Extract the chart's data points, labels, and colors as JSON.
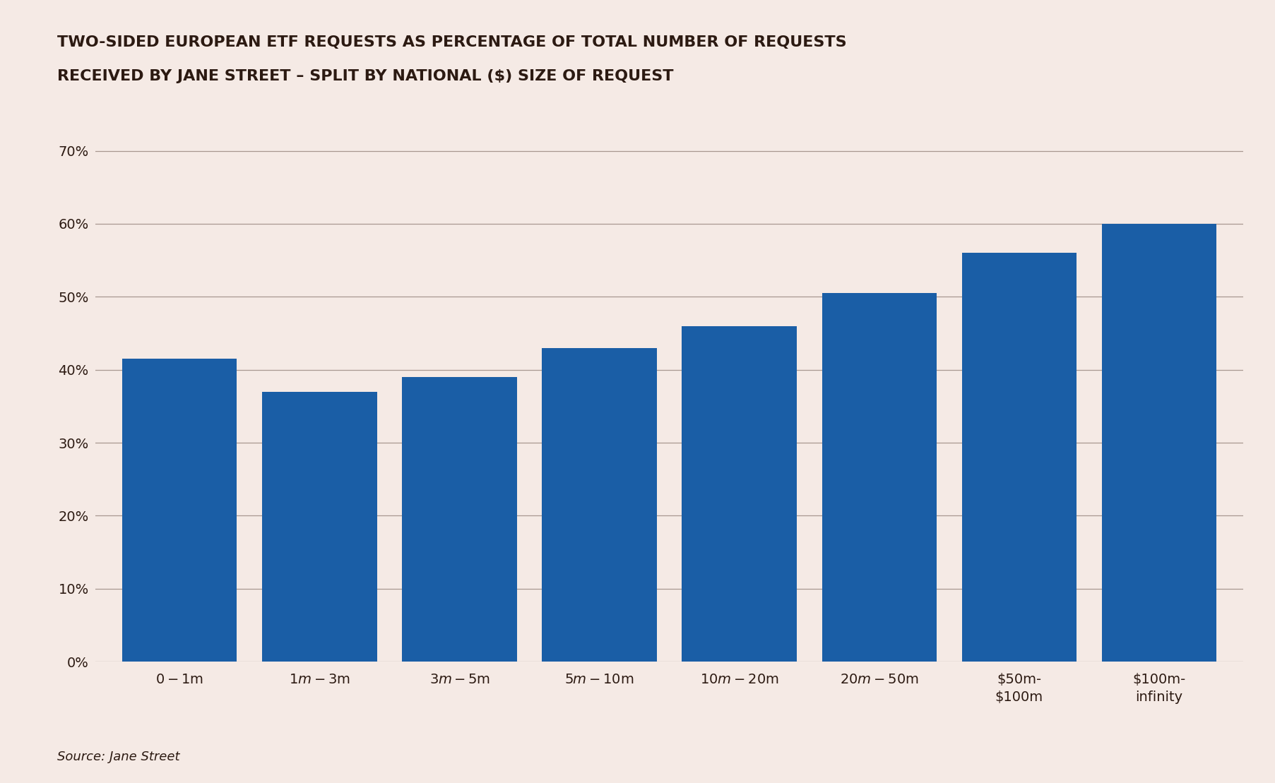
{
  "title_line1": "TWO-SIDED EUROPEAN ETF REQUESTS AS PERCENTAGE OF TOTAL NUMBER OF REQUESTS",
  "title_line2": "RECEIVED BY JANE STREET – SPLIT BY NATIONAL ($) SIZE OF REQUEST",
  "categories": [
    "$0-$1m",
    "$1m-$3m",
    "$3m-$5m",
    "$5m-$10m",
    "$10m-$20m",
    "$20m-$50m",
    "$50m-\n$100m",
    "$100m-\ninfinity"
  ],
  "values": [
    0.415,
    0.37,
    0.39,
    0.43,
    0.46,
    0.505,
    0.56,
    0.6
  ],
  "bar_color": "#1A5EA6",
  "background_color": "#F5EAE5",
  "grid_color": "#A89890",
  "text_color": "#2C1A12",
  "yticks": [
    0.0,
    0.1,
    0.2,
    0.3,
    0.4,
    0.5,
    0.6,
    0.7
  ],
  "ytick_labels": [
    "0%",
    "10%",
    "20%",
    "30%",
    "40%",
    "50%",
    "60%",
    "70%"
  ],
  "ylim": [
    0,
    0.735
  ],
  "source_text": "Source: Jane Street",
  "title_fontsize": 16,
  "tick_fontsize": 14,
  "source_fontsize": 13,
  "bar_width": 0.82
}
